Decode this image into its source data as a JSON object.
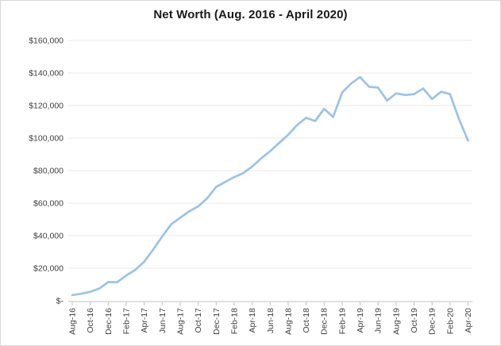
{
  "chart_data": {
    "type": "line",
    "title": "Net Worth (Aug. 2016 - April 2020)",
    "xlabel": "",
    "ylabel": "",
    "legend": "none",
    "grid": "horizontal",
    "ylim": [
      0,
      160000
    ],
    "x_tick_step": 2,
    "categories": [
      "Aug-16",
      "Sep-16",
      "Oct-16",
      "Nov-16",
      "Dec-16",
      "Jan-17",
      "Feb-17",
      "Mar-17",
      "Apr-17",
      "May-17",
      "Jun-17",
      "Jul-17",
      "Aug-17",
      "Sep-17",
      "Oct-17",
      "Nov-17",
      "Dec-17",
      "Jan-18",
      "Feb-18",
      "Mar-18",
      "Apr-18",
      "May-18",
      "Jun-18",
      "Jul-18",
      "Aug-18",
      "Sep-18",
      "Oct-18",
      "Nov-18",
      "Dec-18",
      "Jan-19",
      "Feb-19",
      "Mar-19",
      "Apr-19",
      "May-19",
      "Jun-19",
      "Jul-19",
      "Aug-19",
      "Sep-19",
      "Oct-19",
      "Nov-19",
      "Dec-19",
      "Jan-20",
      "Feb-20",
      "Mar-20",
      "Apr-20"
    ],
    "values": [
      3500,
      4300,
      5500,
      7500,
      11500,
      11400,
      15500,
      19000,
      24000,
      31500,
      39500,
      47000,
      51000,
      55000,
      58000,
      63000,
      70000,
      73000,
      76000,
      78500,
      82500,
      87500,
      92000,
      97000,
      102000,
      108000,
      112500,
      110500,
      118000,
      113000,
      128000,
      133500,
      137500,
      131500,
      131000,
      123000,
      127500,
      126500,
      127000,
      130500,
      124000,
      128500,
      127000,
      111500,
      98500
    ],
    "y_ticks": [
      {
        "value": 0,
        "label": "$-"
      },
      {
        "value": 20000,
        "label": "$20,000"
      },
      {
        "value": 40000,
        "label": "$40,000"
      },
      {
        "value": 60000,
        "label": "$60,000"
      },
      {
        "value": 80000,
        "label": "$80,000"
      },
      {
        "value": 100000,
        "label": "$100,000"
      },
      {
        "value": 120000,
        "label": "$120,000"
      },
      {
        "value": 140000,
        "label": "$140,000"
      },
      {
        "value": 160000,
        "label": "$160,000"
      }
    ],
    "colors": {
      "line": "#9DC3E6",
      "gridline": "#EAEAEA",
      "axis": "#C0C0C0",
      "tick_text": "#404040",
      "title_text": "#1A1A1A",
      "background": "#FFFFFF",
      "border": "#D9D9D9"
    }
  }
}
